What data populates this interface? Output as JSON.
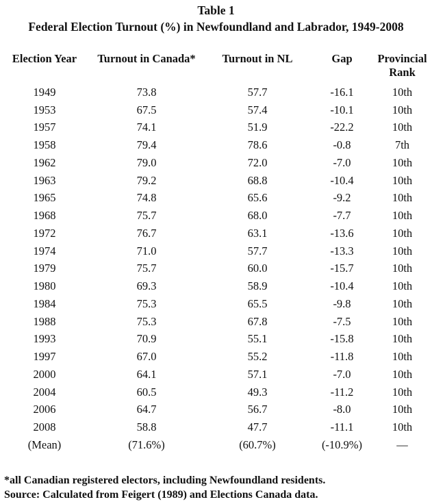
{
  "title": "Table 1",
  "subtitle": "Federal Election Turnout (%) in Newfoundland and Labrador, 1949-2008",
  "headers": [
    "Election Year",
    "Turnout in Canada*",
    "Turnout in NL",
    "Gap",
    "Provincial Rank"
  ],
  "rows": [
    [
      "1949",
      "73.8",
      "57.7",
      "-16.1",
      "10th"
    ],
    [
      "1953",
      "67.5",
      "57.4",
      "-10.1",
      "10th"
    ],
    [
      "1957",
      "74.1",
      "51.9",
      "-22.2",
      "10th"
    ],
    [
      "1958",
      "79.4",
      "78.6",
      "-0.8",
      "7th"
    ],
    [
      "1962",
      "79.0",
      "72.0",
      "-7.0",
      "10th"
    ],
    [
      "1963",
      "79.2",
      "68.8",
      "-10.4",
      "10th"
    ],
    [
      "1965",
      "74.8",
      "65.6",
      "-9.2",
      "10th"
    ],
    [
      "1968",
      "75.7",
      "68.0",
      "-7.7",
      "10th"
    ],
    [
      "1972",
      "76.7",
      "63.1",
      "-13.6",
      "10th"
    ],
    [
      "1974",
      "71.0",
      "57.7",
      "-13.3",
      "10th"
    ],
    [
      "1979",
      "75.7",
      "60.0",
      "-15.7",
      "10th"
    ],
    [
      "1980",
      "69.3",
      "58.9",
      "-10.4",
      "10th"
    ],
    [
      "1984",
      "75.3",
      "65.5",
      "-9.8",
      "10th"
    ],
    [
      "1988",
      "75.3",
      "67.8",
      "-7.5",
      "10th"
    ],
    [
      "1993",
      "70.9",
      "55.1",
      "-15.8",
      "10th"
    ],
    [
      "1997",
      "67.0",
      "55.2",
      "-11.8",
      "10th"
    ],
    [
      "2000",
      "64.1",
      "57.1",
      "-7.0",
      "10th"
    ],
    [
      "2004",
      "60.5",
      "49.3",
      "-11.2",
      "10th"
    ],
    [
      "2006",
      "64.7",
      "56.7",
      "-8.0",
      "10th"
    ],
    [
      "2008",
      "58.8",
      "47.7",
      "-11.1",
      "10th"
    ],
    [
      "(Mean)",
      "(71.6%)",
      "(60.7%)",
      "(-10.9%)",
      "—"
    ]
  ],
  "footnote": "*all Canadian registered electors, including Newfoundland residents.",
  "source": "Source: Calculated from Feigert (1989) and Elections Canada data."
}
